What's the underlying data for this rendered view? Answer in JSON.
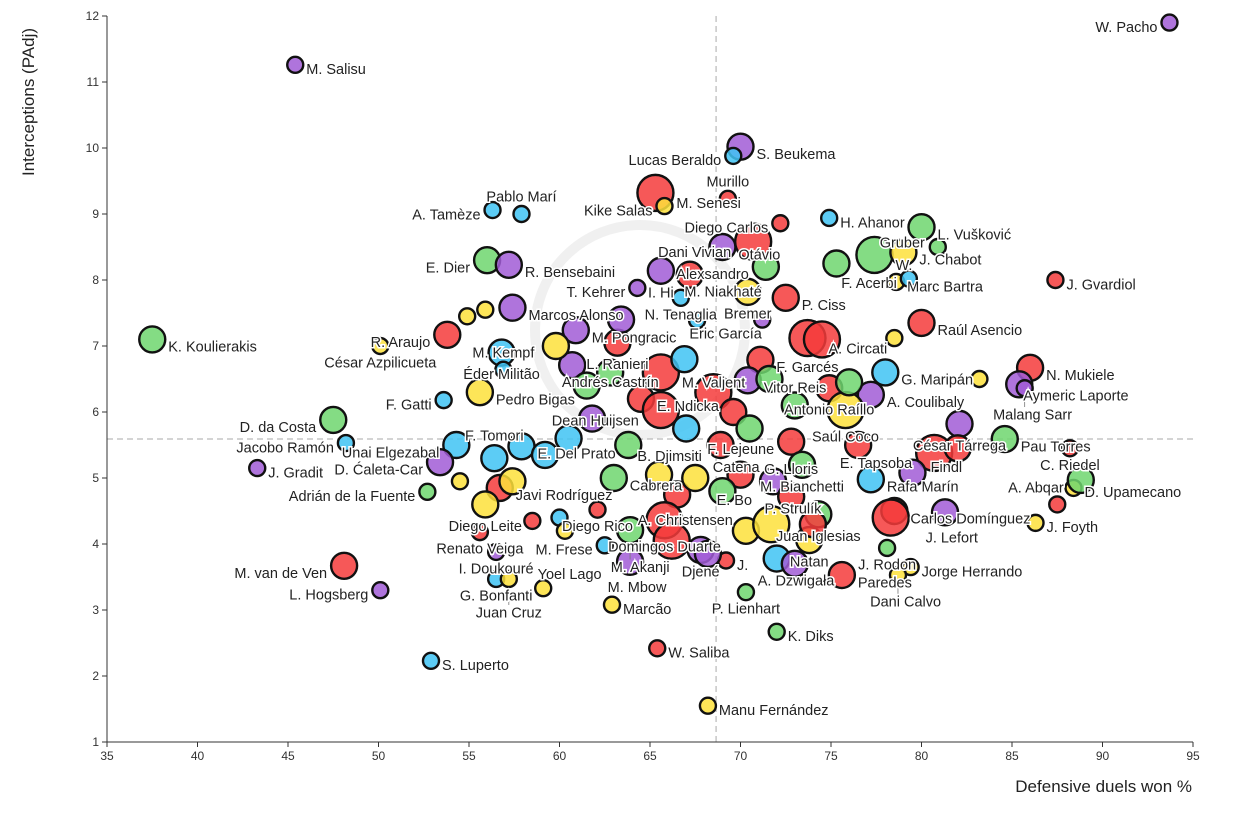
{
  "chart_data": {
    "type": "scatter",
    "title": "",
    "xlabel": "Defensive duels won %",
    "ylabel": "Interceptions (PAdj)",
    "xlim": [
      35,
      95
    ],
    "ylim": [
      1,
      12
    ],
    "xticks": [
      35,
      40,
      45,
      50,
      55,
      60,
      65,
      70,
      75,
      80,
      85,
      90,
      95
    ],
    "yticks": [
      1,
      2,
      3,
      4,
      5,
      6,
      7,
      8,
      9,
      10,
      11,
      12
    ],
    "reference_lines": {
      "x_mean": 68.65,
      "y_mean": 5.59
    },
    "grid": false,
    "colors": {
      "red": "#f53b3b",
      "green": "#6fd66f",
      "yellow": "#fde13b",
      "cyan": "#3fc3f3",
      "purple": "#a15cd6"
    },
    "points": [
      {
        "n": "W. Pacho",
        "x": 93.7,
        "y": 11.9,
        "s": 1,
        "c": "purple"
      },
      {
        "n": "M. Salisu",
        "x": 45.4,
        "y": 11.26,
        "s": 1,
        "c": "purple"
      },
      {
        "n": "S. Beukema",
        "x": 70.0,
        "y": 10.02,
        "s": 2,
        "c": "purple"
      },
      {
        "n": "Lucas Beraldo",
        "x": 69.6,
        "y": 9.88,
        "s": 1,
        "c": "cyan"
      },
      {
        "n": "M. Senesi",
        "x": 65.3,
        "y": 9.32,
        "s": 3,
        "c": "red"
      },
      {
        "n": "Kike Salas",
        "x": 65.8,
        "y": 9.12,
        "s": 1,
        "c": "yellow"
      },
      {
        "n": "Murillo",
        "x": 69.3,
        "y": 9.23,
        "s": 1,
        "c": "red"
      },
      {
        "n": "H. Ahanor",
        "x": 74.9,
        "y": 8.94,
        "s": 1,
        "c": "cyan"
      },
      {
        "n": "A. Tamèze",
        "x": 56.3,
        "y": 9.06,
        "s": 1,
        "c": "cyan"
      },
      {
        "n": "Pablo Marí",
        "x": 57.9,
        "y": 9.0,
        "s": 1,
        "c": "cyan"
      },
      {
        "n": "Diego Carlos",
        "x": 72.2,
        "y": 8.86,
        "s": 1,
        "c": "red"
      },
      {
        "n": "L. Vušković",
        "x": 80.0,
        "y": 8.8,
        "s": 2,
        "c": "green"
      },
      {
        "n": "Otávio",
        "x": 69.0,
        "y": 8.5,
        "s": 2,
        "c": "purple"
      },
      {
        "n": "Dani Vivian",
        "x": 70.7,
        "y": 8.58,
        "s": 3,
        "c": "red"
      },
      {
        "n": "W.",
        "x": 77.4,
        "y": 8.38,
        "s": 3,
        "c": "green"
      },
      {
        "n": "J. Chabot",
        "x": 79.0,
        "y": 8.42,
        "s": 2,
        "c": "yellow"
      },
      {
        "n": "Gruber",
        "x": 80.9,
        "y": 8.5,
        "s": 1,
        "c": "green"
      },
      {
        "n": "E. Dier",
        "x": 56.0,
        "y": 8.3,
        "s": 2,
        "c": "green"
      },
      {
        "n": "R. Bensebaini",
        "x": 57.2,
        "y": 8.23,
        "s": 2,
        "c": "purple"
      },
      {
        "n": "J. Gvardiol",
        "x": 87.4,
        "y": 8.0,
        "s": 1,
        "c": "red"
      },
      {
        "n": "Marc Bartra",
        "x": 78.6,
        "y": 7.97,
        "s": 1,
        "c": "yellow"
      },
      {
        "n": "F. Acerbi",
        "x": 79.3,
        "y": 8.02,
        "s": 1,
        "c": "cyan"
      },
      {
        "n": "Alexsandro",
        "x": 71.4,
        "y": 8.2,
        "s": 2,
        "c": "green"
      },
      {
        "n": "I. Hi",
        "x": 65.6,
        "y": 8.14,
        "s": 2,
        "c": "purple"
      },
      {
        "n": "M. Niakhaté",
        "x": 67.2,
        "y": 8.08,
        "s": 2,
        "c": "red"
      },
      {
        "n": "T. Kehrer",
        "x": 64.3,
        "y": 7.88,
        "s": 1,
        "c": "purple"
      },
      {
        "n": "N. Tenaglia",
        "x": 66.7,
        "y": 7.73,
        "s": 1,
        "c": "cyan"
      },
      {
        "n": "Bremer",
        "x": 70.4,
        "y": 7.82,
        "s": 2,
        "c": "yellow"
      },
      {
        "n": "P. Ciss",
        "x": 72.5,
        "y": 7.73,
        "s": 2,
        "c": "red"
      },
      {
        "n": "Raúl Asencio",
        "x": 80.0,
        "y": 7.35,
        "s": 2,
        "c": "red"
      },
      {
        "n": "",
        "x": 78.5,
        "y": 7.12,
        "s": 1,
        "c": "yellow"
      },
      {
        "n": "Marcos Alonso",
        "x": 57.4,
        "y": 7.58,
        "s": 2,
        "c": "purple"
      },
      {
        "n": "R. Araujo",
        "x": 53.8,
        "y": 7.17,
        "s": 2,
        "c": "red"
      },
      {
        "n": "César Azpilicueta",
        "x": 50.1,
        "y": 7.0,
        "s": 1,
        "c": "yellow"
      },
      {
        "n": "K. Koulierakis",
        "x": 37.5,
        "y": 7.1,
        "s": 2,
        "c": "green"
      },
      {
        "n": "M. Pongracic",
        "x": 60.9,
        "y": 7.24,
        "s": 2,
        "c": "purple"
      },
      {
        "n": "Eric García",
        "x": 67.6,
        "y": 7.39,
        "s": 1,
        "c": "cyan"
      },
      {
        "n": "L. Ranieri",
        "x": 63.2,
        "y": 7.05,
        "s": 2,
        "c": "red"
      },
      {
        "n": "A. Circati",
        "x": 73.7,
        "y": 7.12,
        "s": 3,
        "c": "red"
      },
      {
        "n": "Éder Militão",
        "x": 56.8,
        "y": 6.9,
        "s": 2,
        "c": "cyan"
      },
      {
        "n": "F. Garcés",
        "x": 71.1,
        "y": 6.79,
        "s": 2,
        "c": "red"
      },
      {
        "n": "M. Valjent",
        "x": 65.6,
        "y": 6.6,
        "s": 3,
        "c": "red"
      },
      {
        "n": "G. Maripán",
        "x": 78.0,
        "y": 6.6,
        "s": 2,
        "c": "cyan"
      },
      {
        "n": "Andrés Castrín",
        "x": 60.7,
        "y": 6.71,
        "s": 2,
        "c": "purple"
      },
      {
        "n": "M. Kempf",
        "x": 56.9,
        "y": 6.64,
        "s": 1,
        "c": "cyan"
      },
      {
        "n": "Vitor Reis",
        "x": 70.4,
        "y": 6.48,
        "s": 2,
        "c": "purple"
      },
      {
        "n": "Antonio Raíllo",
        "x": 74.9,
        "y": 6.36,
        "s": 2,
        "c": "red"
      },
      {
        "n": "A. Coulibaly",
        "x": 77.2,
        "y": 6.26,
        "s": 2,
        "c": "purple"
      },
      {
        "n": "N. Mukiele",
        "x": 86.0,
        "y": 6.67,
        "s": 2,
        "c": "red"
      },
      {
        "n": "Aymeric Laporte",
        "x": 85.4,
        "y": 6.42,
        "s": 2,
        "c": "purple"
      },
      {
        "n": "Malang Sarr",
        "x": 85.7,
        "y": 6.36,
        "s": 1,
        "c": "purple"
      },
      {
        "n": "",
        "x": 83.2,
        "y": 6.5,
        "s": 1,
        "c": "yellow"
      },
      {
        "n": "Pedro Bigas",
        "x": 55.6,
        "y": 6.3,
        "s": 2,
        "c": "yellow"
      },
      {
        "n": "F. Gatti",
        "x": 53.6,
        "y": 6.18,
        "s": 1,
        "c": "cyan"
      },
      {
        "n": "E. Ndicka",
        "x": 64.5,
        "y": 6.2,
        "s": 2,
        "c": "red"
      },
      {
        "n": "Dean Huijsen",
        "x": 65.6,
        "y": 6.03,
        "s": 3,
        "c": "red"
      },
      {
        "n": "Saúl Coco",
        "x": 75.8,
        "y": 6.03,
        "s": 3,
        "c": "yellow"
      },
      {
        "n": "César Tárrega",
        "x": 82.1,
        "y": 5.82,
        "s": 2,
        "c": "purple"
      },
      {
        "n": "Pau Torres",
        "x": 84.6,
        "y": 5.59,
        "s": 2,
        "c": "green"
      },
      {
        "n": "D. da Costa",
        "x": 47.5,
        "y": 5.88,
        "s": 2,
        "c": "green"
      },
      {
        "n": "Jacobo Ramón",
        "x": 48.2,
        "y": 5.53,
        "s": 1,
        "c": "cyan"
      },
      {
        "n": "J. Gradit",
        "x": 43.3,
        "y": 5.15,
        "s": 1,
        "c": "purple"
      },
      {
        "n": "Unai Elgezabal",
        "x": 54.3,
        "y": 5.5,
        "s": 2,
        "c": "cyan"
      },
      {
        "n": "E. Del Prato",
        "x": 57.9,
        "y": 5.48,
        "s": 2,
        "c": "cyan"
      },
      {
        "n": "F. Lejeune",
        "x": 72.8,
        "y": 5.55,
        "s": 2,
        "c": "red"
      },
      {
        "n": "B. Djimsiti",
        "x": 63.8,
        "y": 5.5,
        "s": 2,
        "c": "green"
      },
      {
        "n": "Catena",
        "x": 68.9,
        "y": 5.5,
        "s": 2,
        "c": "red"
      },
      {
        "n": "E. Tapsoba",
        "x": 80.7,
        "y": 5.38,
        "s": 3,
        "c": "red"
      },
      {
        "n": "",
        "x": 82.0,
        "y": 5.45,
        "s": 2,
        "c": "red"
      },
      {
        "n": "C. Riedel",
        "x": 88.2,
        "y": 5.45,
        "s": 1,
        "c": "red"
      },
      {
        "n": "F. Tomori",
        "x": 56.4,
        "y": 5.3,
        "s": 2,
        "c": "cyan"
      },
      {
        "n": "D. Ćaleta-Car",
        "x": 53.4,
        "y": 5.24,
        "s": 2,
        "c": "purple"
      },
      {
        "n": "M. Bianchetti",
        "x": 73.4,
        "y": 5.2,
        "s": 2,
        "c": "green"
      },
      {
        "n": "Rafa Marín",
        "x": 77.2,
        "y": 4.98,
        "s": 2,
        "c": "cyan"
      },
      {
        "n": "Findl",
        "x": 79.5,
        "y": 5.08,
        "s": 2,
        "c": "purple"
      },
      {
        "n": "Javi Rodríguez",
        "x": 56.7,
        "y": 4.85,
        "s": 2,
        "c": "red"
      },
      {
        "n": "Adrián de la Fuente",
        "x": 52.7,
        "y": 4.79,
        "s": 1,
        "c": "green"
      },
      {
        "n": "Cabrera",
        "x": 63.0,
        "y": 5.0,
        "s": 2,
        "c": "green"
      },
      {
        "n": "E. Bo",
        "x": 70.0,
        "y": 5.05,
        "s": 2,
        "c": "red"
      },
      {
        "n": "P. Strulík",
        "x": 71.8,
        "y": 4.95,
        "s": 2,
        "c": "purple"
      },
      {
        "n": "G. Lloris",
        "x": 72.8,
        "y": 4.72,
        "s": 2,
        "c": "red"
      },
      {
        "n": "A. Christensen",
        "x": 66.5,
        "y": 4.75,
        "s": 2,
        "c": "red"
      },
      {
        "n": "D. Upamecano",
        "x": 88.4,
        "y": 4.85,
        "s": 1,
        "c": "yellow"
      },
      {
        "n": "A. Abqar",
        "x": 88.8,
        "y": 4.97,
        "s": 2,
        "c": "green"
      },
      {
        "n": "Diego Leite",
        "x": 55.9,
        "y": 4.6,
        "s": 2,
        "c": "yellow"
      },
      {
        "n": "Diego Rico",
        "x": 62.1,
        "y": 4.52,
        "s": 1,
        "c": "red"
      },
      {
        "n": "Domingos Duarte",
        "x": 65.8,
        "y": 4.36,
        "s": 3,
        "c": "red"
      },
      {
        "n": "Carlos Domínguez",
        "x": 78.5,
        "y": 4.5,
        "s": 2,
        "c": "red"
      },
      {
        "n": "Juan Iglesias",
        "x": 74.3,
        "y": 4.45,
        "s": 2,
        "c": "green"
      },
      {
        "n": "J. Lefort",
        "x": 81.3,
        "y": 4.48,
        "s": 2,
        "c": "purple"
      },
      {
        "n": "J. Foyth",
        "x": 86.3,
        "y": 4.32,
        "s": 1,
        "c": "yellow"
      },
      {
        "n": "",
        "x": 87.5,
        "y": 4.6,
        "s": 1,
        "c": "red"
      },
      {
        "n": "M. Akanji",
        "x": 63.9,
        "y": 4.21,
        "s": 2,
        "c": "green"
      },
      {
        "n": "Renato Veiga",
        "x": 55.6,
        "y": 4.18,
        "s": 1,
        "c": "red"
      },
      {
        "n": "Natan",
        "x": 73.8,
        "y": 4.06,
        "s": 2,
        "c": "yellow"
      },
      {
        "n": "J. Rodon",
        "x": 78.1,
        "y": 3.94,
        "s": 1,
        "c": "green"
      },
      {
        "n": "I. Doukouré",
        "x": 56.5,
        "y": 3.88,
        "s": 1,
        "c": "purple"
      },
      {
        "n": "M. Frese",
        "x": 62.5,
        "y": 3.98,
        "s": 1,
        "c": "cyan"
      },
      {
        "n": "Djené",
        "x": 67.8,
        "y": 3.91,
        "s": 2,
        "c": "purple"
      },
      {
        "n": "M. Mbow",
        "x": 63.9,
        "y": 3.73,
        "s": 2,
        "c": "purple"
      },
      {
        "n": "J.",
        "x": 69.2,
        "y": 3.75,
        "s": 1,
        "c": "red"
      },
      {
        "n": "A. Dzwigała",
        "x": 72.0,
        "y": 3.78,
        "s": 2,
        "c": "cyan"
      },
      {
        "n": "Paredes",
        "x": 75.6,
        "y": 3.53,
        "s": 2,
        "c": "red"
      },
      {
        "n": "Jorge Herrando",
        "x": 79.4,
        "y": 3.65,
        "s": 1,
        "c": "yellow"
      },
      {
        "n": "Dani Calvo",
        "x": 78.7,
        "y": 3.53,
        "s": 1,
        "c": "yellow"
      },
      {
        "n": "M. van de Ven",
        "x": 48.1,
        "y": 3.67,
        "s": 2,
        "c": "red"
      },
      {
        "n": "L. Hogsberg",
        "x": 50.1,
        "y": 3.3,
        "s": 1,
        "c": "purple"
      },
      {
        "n": "G. Bonfanti",
        "x": 56.5,
        "y": 3.47,
        "s": 1,
        "c": "cyan"
      },
      {
        "n": "Juan Cruz",
        "x": 57.2,
        "y": 3.47,
        "s": 1,
        "c": "yellow"
      },
      {
        "n": "Yoel Lago",
        "x": 59.1,
        "y": 3.33,
        "s": 1,
        "c": "yellow"
      },
      {
        "n": "Marcão",
        "x": 62.9,
        "y": 3.08,
        "s": 1,
        "c": "yellow"
      },
      {
        "n": "P. Lienhart",
        "x": 70.3,
        "y": 3.27,
        "s": 1,
        "c": "green"
      },
      {
        "n": "K. Diks",
        "x": 72.0,
        "y": 2.67,
        "s": 1,
        "c": "green"
      },
      {
        "n": "W. Saliba",
        "x": 65.4,
        "y": 2.42,
        "s": 1,
        "c": "red"
      },
      {
        "n": "S. Luperto",
        "x": 52.9,
        "y": 2.23,
        "s": 1,
        "c": "cyan"
      },
      {
        "n": "Manu Fernández",
        "x": 68.2,
        "y": 1.55,
        "s": 1,
        "c": "yellow"
      },
      {
        "n": "",
        "x": 54.9,
        "y": 7.45,
        "s": 1,
        "c": "yellow"
      },
      {
        "n": "",
        "x": 55.9,
        "y": 7.55,
        "s": 1,
        "c": "yellow"
      },
      {
        "n": "",
        "x": 59.8,
        "y": 7.0,
        "s": 2,
        "c": "yellow"
      },
      {
        "n": "",
        "x": 61.5,
        "y": 6.4,
        "s": 2,
        "c": "green"
      },
      {
        "n": "",
        "x": 62.8,
        "y": 6.6,
        "s": 2,
        "c": "green"
      },
      {
        "n": "",
        "x": 66.9,
        "y": 6.8,
        "s": 2,
        "c": "cyan"
      },
      {
        "n": "",
        "x": 68.5,
        "y": 6.3,
        "s": 3,
        "c": "red"
      },
      {
        "n": "",
        "x": 69.6,
        "y": 6.0,
        "s": 2,
        "c": "red"
      },
      {
        "n": "",
        "x": 71.6,
        "y": 6.5,
        "s": 2,
        "c": "green"
      },
      {
        "n": "",
        "x": 73.0,
        "y": 6.1,
        "s": 2,
        "c": "green"
      },
      {
        "n": "",
        "x": 74.5,
        "y": 7.1,
        "s": 3,
        "c": "red"
      },
      {
        "n": "",
        "x": 76.0,
        "y": 6.45,
        "s": 2,
        "c": "green"
      },
      {
        "n": "",
        "x": 60.5,
        "y": 5.6,
        "s": 2,
        "c": "cyan"
      },
      {
        "n": "",
        "x": 59.2,
        "y": 5.35,
        "s": 2,
        "c": "cyan"
      },
      {
        "n": "",
        "x": 61.8,
        "y": 5.9,
        "s": 2,
        "c": "purple"
      },
      {
        "n": "",
        "x": 67.0,
        "y": 5.75,
        "s": 2,
        "c": "cyan"
      },
      {
        "n": "",
        "x": 70.5,
        "y": 5.75,
        "s": 2,
        "c": "green"
      },
      {
        "n": "",
        "x": 65.5,
        "y": 5.05,
        "s": 2,
        "c": "yellow"
      },
      {
        "n": "",
        "x": 67.5,
        "y": 5.0,
        "s": 2,
        "c": "yellow"
      },
      {
        "n": "",
        "x": 69.0,
        "y": 4.8,
        "s": 2,
        "c": "green"
      },
      {
        "n": "",
        "x": 70.3,
        "y": 4.2,
        "s": 2,
        "c": "yellow"
      },
      {
        "n": "",
        "x": 71.7,
        "y": 4.3,
        "s": 3,
        "c": "yellow"
      },
      {
        "n": "",
        "x": 66.2,
        "y": 4.05,
        "s": 3,
        "c": "red"
      },
      {
        "n": "",
        "x": 68.2,
        "y": 3.85,
        "s": 2,
        "c": "purple"
      },
      {
        "n": "",
        "x": 73.0,
        "y": 3.7,
        "s": 2,
        "c": "purple"
      },
      {
        "n": "",
        "x": 74.0,
        "y": 4.3,
        "s": 2,
        "c": "red"
      },
      {
        "n": "",
        "x": 76.5,
        "y": 5.5,
        "s": 2,
        "c": "red"
      },
      {
        "n": "",
        "x": 78.3,
        "y": 4.4,
        "s": 3,
        "c": "red"
      },
      {
        "n": "",
        "x": 60.0,
        "y": 4.4,
        "s": 1,
        "c": "cyan"
      },
      {
        "n": "",
        "x": 58.5,
        "y": 4.35,
        "s": 1,
        "c": "red"
      },
      {
        "n": "",
        "x": 60.3,
        "y": 4.2,
        "s": 1,
        "c": "yellow"
      },
      {
        "n": "",
        "x": 57.4,
        "y": 4.95,
        "s": 2,
        "c": "yellow"
      },
      {
        "n": "",
        "x": 54.5,
        "y": 4.95,
        "s": 1,
        "c": "yellow"
      },
      {
        "n": "",
        "x": 75.3,
        "y": 8.25,
        "s": 2,
        "c": "green"
      },
      {
        "n": "",
        "x": 63.4,
        "y": 7.4,
        "s": 2,
        "c": "purple"
      },
      {
        "n": "",
        "x": 71.2,
        "y": 7.4,
        "s": 1,
        "c": "purple"
      }
    ]
  }
}
